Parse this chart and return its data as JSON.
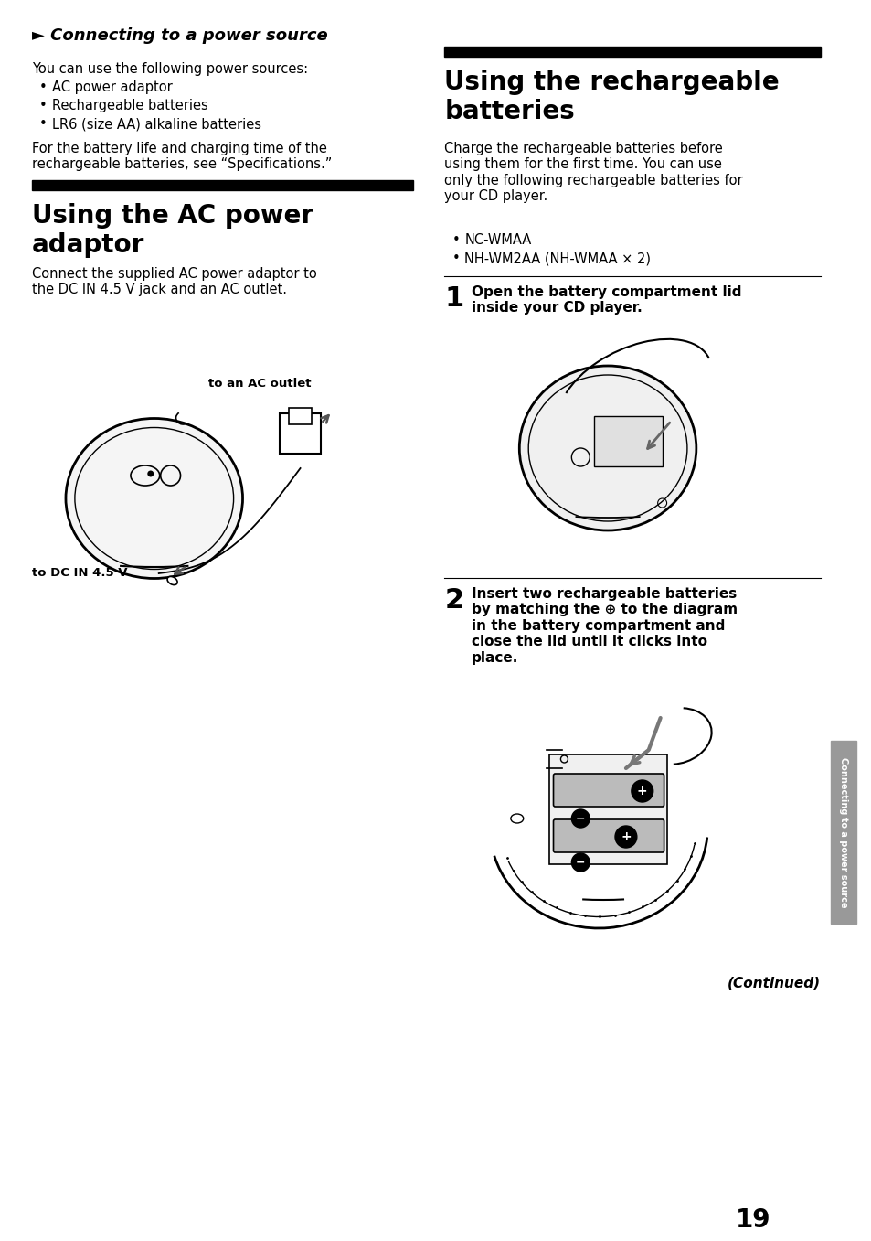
{
  "bg_color": "#ffffff",
  "page_number": "19",
  "sidebar_text": "Connecting to a power source",
  "section1_header": "► Connecting to a power source",
  "section1_intro": "You can use the following power sources:",
  "section1_bullets": [
    "AC power adaptor",
    "Rechargeable batteries",
    "LR6 (size AA) alkaline batteries"
  ],
  "section1_note": "For the battery life and charging time of the\nrechargeable batteries, see “Specifications.”",
  "section2_header": "Using the AC power\nadaptor",
  "section2_body": "Connect the supplied AC power adaptor to\nthe DC IN 4.5 V jack and an AC outlet.",
  "section2_label_ac": "to an AC outlet",
  "section2_label_dc": "to DC IN 4.5 V",
  "section3_header": "Using the rechargeable\nbatteries",
  "section3_body": "Charge the rechargeable batteries before\nusing them for the first time. You can use\nonly the following rechargeable batteries for\nyour CD player.",
  "section3_bullets": [
    "NC-WMAA",
    "NH-WM2AA (NH-WMAA × 2)"
  ],
  "step1_num": "1",
  "step1_text": "Open the battery compartment lid\ninside your CD player.",
  "step2_num": "2",
  "step2_text": "Insert two rechargeable batteries\nby matching the ⊕ to the diagram\nin the battery compartment and\nclose the lid until it clicks into\nplace.",
  "continued_text": "(Continued)"
}
